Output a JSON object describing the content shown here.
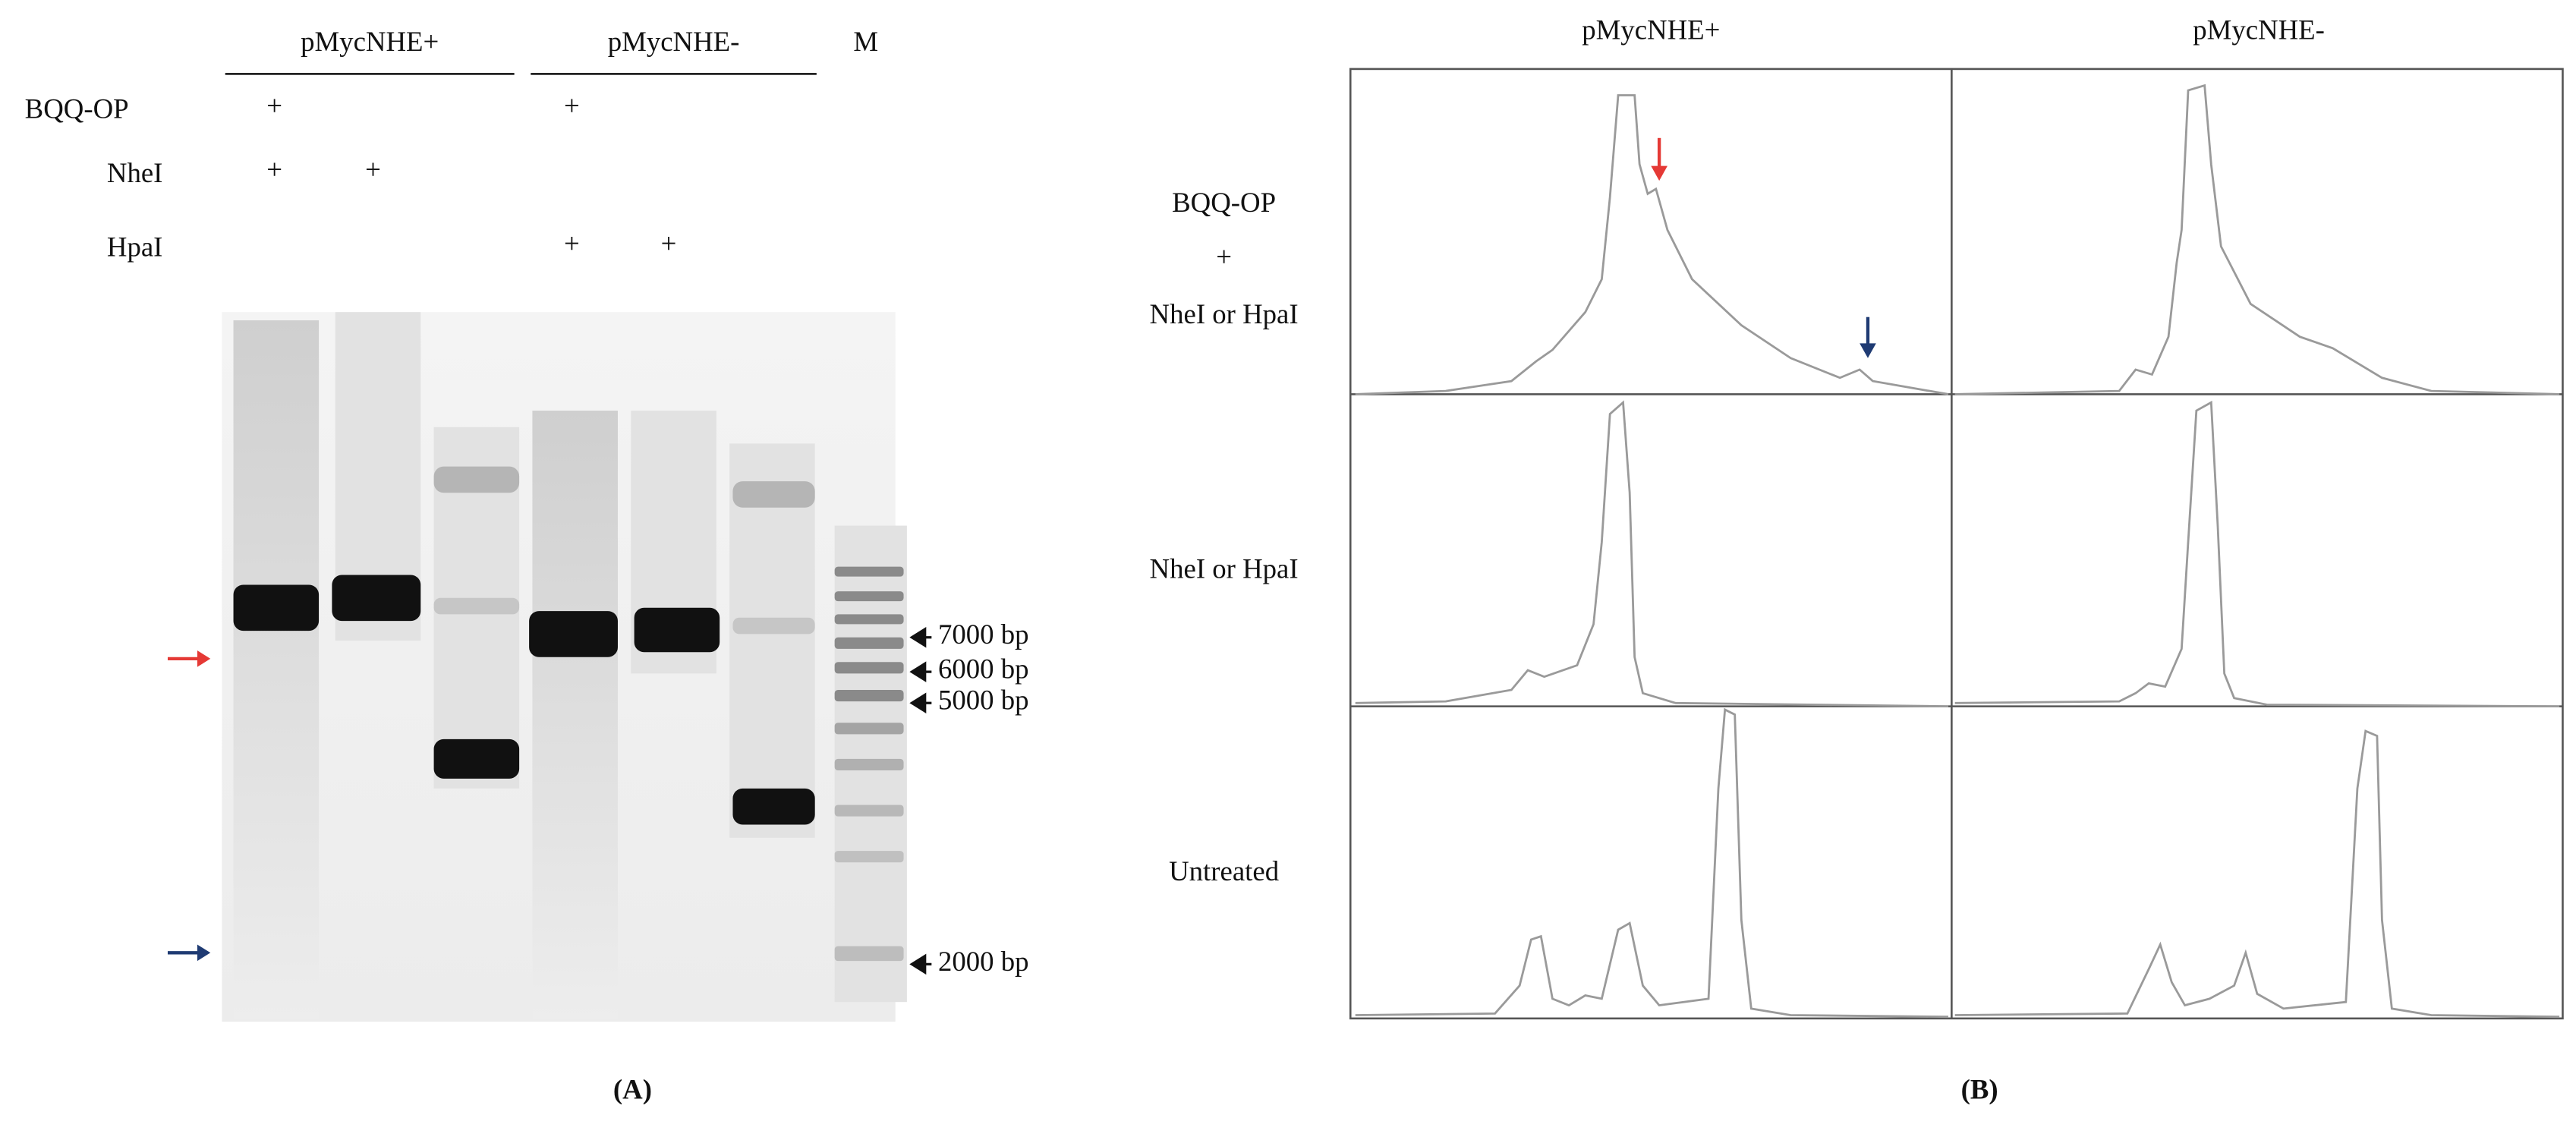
{
  "panel_a": {
    "group_labels": [
      "pMycNHE+",
      "pMycNHE-"
    ],
    "marker_label": "M",
    "rows": [
      {
        "label": "BQQ-OP",
        "marks": [
          "+",
          "+"
        ]
      },
      {
        "label": "NheI",
        "marks": [
          "+",
          "+"
        ]
      },
      {
        "label": "HpaI",
        "marks": [
          "+",
          "+"
        ]
      }
    ],
    "ladder_labels": [
      "7000 bp",
      "6000 bp",
      "5000 bp",
      "2000 bp"
    ],
    "caption": "(A)"
  },
  "panel_b": {
    "column_labels": [
      "pMycNHE+",
      "pMycNHE-"
    ],
    "row_labels": [
      [
        "BQQ-OP",
        "+",
        "NheI or HpaI"
      ],
      [
        "NheI or HpaI"
      ],
      [
        "Untreated"
      ]
    ],
    "caption": "(B)"
  }
}
